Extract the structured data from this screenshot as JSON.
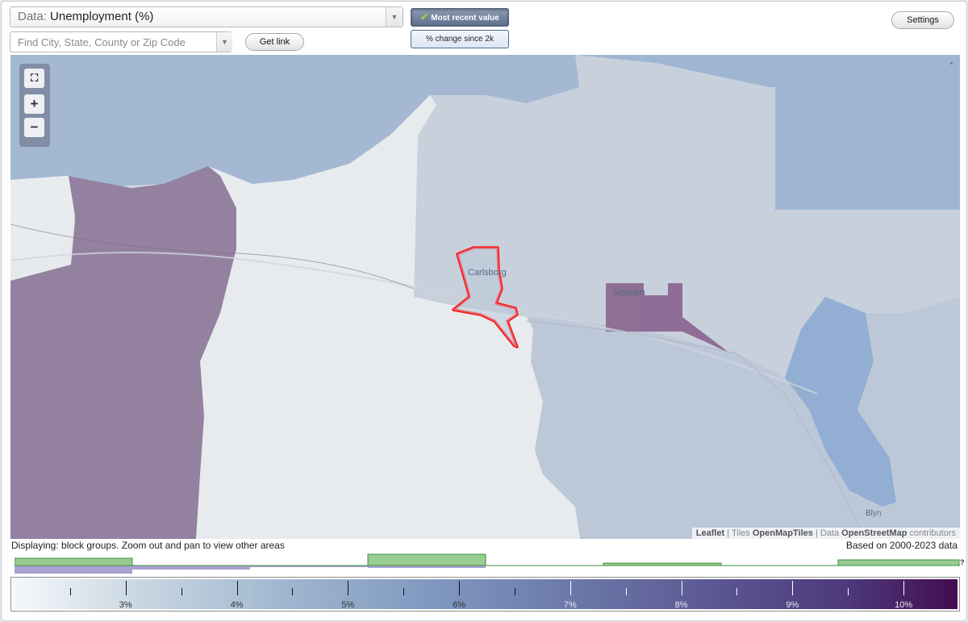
{
  "data_select": {
    "prefix": "Data:",
    "value": "Unemployment (%)"
  },
  "search": {
    "placeholder": "Find City, State, County or Zip Code"
  },
  "buttons": {
    "get_link": "Get link",
    "settings": "Settings"
  },
  "toggles": {
    "most_recent": "Most recent value",
    "change": "% change since 2k"
  },
  "map": {
    "places": [
      "Carlsborg",
      "Sequim",
      "Blyn"
    ],
    "attribution": {
      "leaflet": "Leaflet",
      "tiles_label": "Tiles",
      "tiles": "OpenMapTiles",
      "data_label": "Data",
      "data": "OpenStreetMap",
      "contributors": "contributors"
    },
    "colors": {
      "highlight_outline": "#ff1a1a",
      "water": "#9fb6d3"
    }
  },
  "status": {
    "displaying": "Displaying: block groups. Zoom out and pan to view other areas",
    "based_on": "Based on 2000-2023 data"
  },
  "histogram_end_label": "?",
  "legend": {
    "labels": [
      "3%",
      "4%",
      "5%",
      "6%",
      "7%",
      "8%",
      "9%",
      "10%"
    ],
    "range": [
      2.0,
      10.5
    ],
    "colors": [
      "#f5f8fa",
      "#9db4cf",
      "#6a77a8",
      "#420c52"
    ]
  }
}
